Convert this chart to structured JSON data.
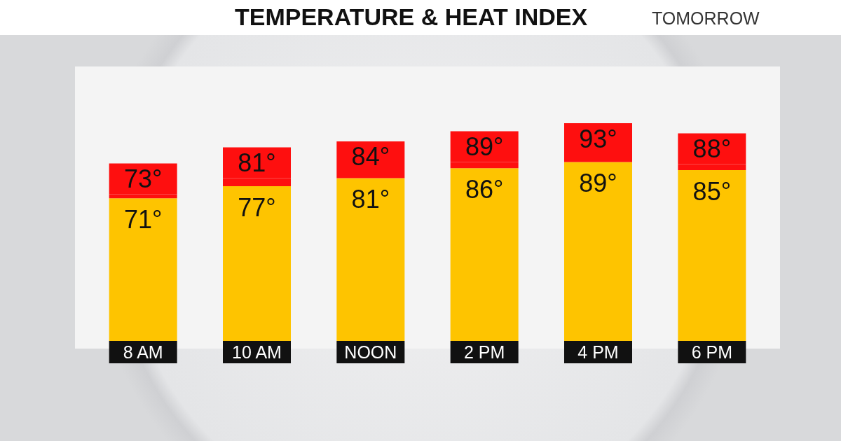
{
  "chart_data": {
    "type": "bar",
    "title": "TEMPERATURE & HEAT INDEX",
    "subtitle": "TOMORROW",
    "categories": [
      "8 AM",
      "10 AM",
      "NOON",
      "2 PM",
      "4 PM",
      "6 PM"
    ],
    "stacked": true,
    "series": [
      {
        "color": "#fec400",
        "values": [
          71,
          77,
          81,
          86,
          89,
          85
        ],
        "value_labels": [
          "71°",
          "77°",
          "81°",
          "86°",
          "89°",
          "85°"
        ]
      },
      {
        "color": "#fe0f0f",
        "values": [
          2,
          4,
          3,
          3,
          4,
          3
        ]
      }
    ],
    "totals": [
      "73°",
      "81°",
      "84°",
      "89°",
      "93°",
      "88°"
    ]
  }
}
